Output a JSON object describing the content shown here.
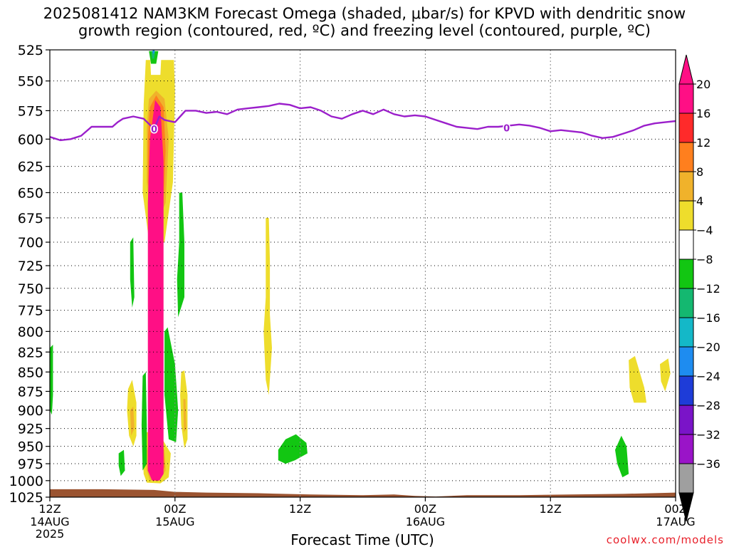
{
  "title_line1": "2025081412 NAM3KM Forecast Omega (shaded, μbar/s) for KPVD with dendritic snow",
  "title_line2": "growth region (contoured, red, ºC) and freezing level (contoured, purple, ºC)",
  "x_title": "Forecast Time (UTC)",
  "credit": "coolwx.com/models",
  "colors": {
    "freezing_line": "#9b1fcb",
    "ground": "#9b5431",
    "grid": "#555555"
  },
  "chart_data": {
    "type": "heatmap",
    "x_unit": "hours since 2025-08-14 12Z",
    "xlim": [
      0,
      60
    ],
    "ylim": [
      525,
      1025
    ],
    "y_scale": "log-pressure",
    "y_ticks": [
      525,
      550,
      575,
      600,
      625,
      650,
      675,
      700,
      725,
      750,
      775,
      800,
      825,
      850,
      875,
      900,
      925,
      950,
      975,
      1000,
      1025
    ],
    "x_ticks": [
      {
        "x": 0,
        "time": "12Z",
        "date": "14AUG",
        "year": "2025"
      },
      {
        "x": 12,
        "time": "00Z",
        "date": "15AUG",
        "year": ""
      },
      {
        "x": 24,
        "time": "12Z",
        "date": "",
        "year": ""
      },
      {
        "x": 36,
        "time": "00Z",
        "date": "16AUG",
        "year": ""
      },
      {
        "x": 48,
        "time": "12Z",
        "date": "",
        "year": ""
      },
      {
        "x": 60,
        "time": "00Z",
        "date": "17AUG",
        "year": ""
      }
    ],
    "colorbar": {
      "labels": [
        "20",
        "16",
        "12",
        "8",
        "4",
        "−4",
        "−8",
        "−12",
        "−16",
        "−20",
        "−24",
        "−28",
        "−32",
        "−36"
      ],
      "bins": [
        "#ff0f85",
        "#ff2a2a",
        "#ff7f1e",
        "#f0b22b",
        "#eedd2c",
        "#ffffff",
        "#12c612",
        "#14b870",
        "#14b8c8",
        "#1e8cf0",
        "#1e3cd8",
        "#7a14c8",
        "#9a14c8",
        "#9f9f9f"
      ]
    },
    "omega_regions": [
      {
        "color": "#eedd2c",
        "points": [
          [
            9.2,
            533
          ],
          [
            11.9,
            533
          ],
          [
            12,
            560
          ],
          [
            11.8,
            640
          ],
          [
            11.0,
            700
          ],
          [
            9.6,
            706
          ],
          [
            8.9,
            650
          ],
          [
            9.0,
            570
          ]
        ]
      },
      {
        "color": "#eedd2c",
        "points": [
          [
            8.9,
            960
          ],
          [
            9.1,
            930
          ],
          [
            9.6,
            930
          ],
          [
            10.8,
            940
          ],
          [
            11.6,
            960
          ],
          [
            11.4,
            995
          ],
          [
            10.6,
            1004
          ],
          [
            9.3,
            1003
          ],
          [
            9.0,
            990
          ]
        ]
      },
      {
        "color": "#eedd2c",
        "points": [
          [
            9.0,
            600
          ],
          [
            9.1,
            570
          ],
          [
            9.8,
            560
          ],
          [
            10.8,
            562
          ],
          [
            11.6,
            585
          ],
          [
            11.7,
            640
          ],
          [
            11.0,
            690
          ],
          [
            9.6,
            693
          ],
          [
            9.1,
            660
          ]
        ]
      },
      {
        "color": "#f0b22b",
        "points": [
          [
            9.3,
            590
          ],
          [
            9.5,
            565
          ],
          [
            10.2,
            558
          ],
          [
            11.0,
            565
          ],
          [
            11.4,
            600
          ],
          [
            11.1,
            660
          ],
          [
            10.4,
            678
          ],
          [
            9.6,
            675
          ],
          [
            9.3,
            640
          ]
        ]
      },
      {
        "color": "#f0b22b",
        "points": [
          [
            9.2,
            960
          ],
          [
            9.5,
            945
          ],
          [
            10.2,
            945
          ],
          [
            11.0,
            955
          ],
          [
            11.1,
            985
          ],
          [
            10.5,
            1000
          ],
          [
            9.6,
            999
          ],
          [
            9.3,
            985
          ]
        ]
      },
      {
        "color": "#ff7f1e",
        "points": [
          [
            9.4,
            600
          ],
          [
            9.6,
            572
          ],
          [
            10.2,
            562
          ],
          [
            10.9,
            572
          ],
          [
            11.1,
            610
          ],
          [
            10.9,
            660
          ],
          [
            10.3,
            668
          ],
          [
            9.7,
            665
          ],
          [
            9.4,
            640
          ]
        ]
      },
      {
        "color": "#ff7f1e",
        "points": [
          [
            9.4,
            965
          ],
          [
            9.6,
            950
          ],
          [
            10.9,
            952
          ],
          [
            11.0,
            980
          ],
          [
            10.5,
            996
          ],
          [
            9.7,
            995
          ],
          [
            9.4,
            985
          ]
        ]
      },
      {
        "color": "#ff0f85",
        "points": [
          [
            9.4,
            660
          ],
          [
            9.6,
            600
          ],
          [
            10.1,
            566
          ],
          [
            10.6,
            572
          ],
          [
            10.9,
            620
          ],
          [
            10.9,
            800
          ],
          [
            10.9,
            990
          ],
          [
            10.5,
            1000
          ],
          [
            9.8,
            1000
          ],
          [
            9.4,
            985
          ],
          [
            9.4,
            800
          ]
        ]
      },
      {
        "color": "#ffffff",
        "points": [
          [
            9.6,
            528
          ],
          [
            10.7,
            528
          ],
          [
            10.6,
            545
          ],
          [
            9.7,
            545
          ]
        ]
      },
      {
        "color": "#12c612",
        "points": [
          [
            9.5,
            526
          ],
          [
            10.4,
            526
          ],
          [
            10.2,
            536
          ],
          [
            9.7,
            536
          ]
        ]
      },
      {
        "color": "#14b870",
        "points": [
          [
            9.75,
            526
          ],
          [
            10.1,
            526
          ],
          [
            10.0,
            532
          ],
          [
            9.8,
            532
          ]
        ]
      },
      {
        "color": "#1e8cf0",
        "points": [
          [
            9.85,
            525
          ],
          [
            10.05,
            525
          ],
          [
            10.0,
            528
          ],
          [
            9.9,
            528
          ]
        ]
      },
      {
        "color": "#12c612",
        "points": [
          [
            7.7,
            700
          ],
          [
            8.0,
            695
          ],
          [
            8.1,
            760
          ],
          [
            7.9,
            772
          ],
          [
            7.7,
            740
          ]
        ]
      },
      {
        "color": "#12c612",
        "points": [
          [
            12.4,
            650
          ],
          [
            12.7,
            650
          ],
          [
            12.9,
            700
          ],
          [
            12.9,
            760
          ],
          [
            12.3,
            783
          ],
          [
            12.2,
            740
          ],
          [
            12.4,
            700
          ]
        ]
      },
      {
        "color": "#12c612",
        "points": [
          [
            11.0,
            800
          ],
          [
            11.3,
            795
          ],
          [
            12.0,
            840
          ],
          [
            12.3,
            900
          ],
          [
            12.1,
            944
          ],
          [
            11.4,
            940
          ],
          [
            11.0,
            880
          ]
        ]
      },
      {
        "color": "#12c612",
        "points": [
          [
            8.9,
            855
          ],
          [
            9.2,
            850
          ],
          [
            9.3,
            920
          ],
          [
            9.3,
            975
          ],
          [
            8.9,
            985
          ],
          [
            8.8,
            920
          ]
        ]
      },
      {
        "color": "#12c612",
        "points": [
          [
            6.6,
            960
          ],
          [
            7.1,
            955
          ],
          [
            7.2,
            985
          ],
          [
            6.8,
            993
          ],
          [
            6.6,
            978
          ]
        ]
      },
      {
        "color": "#12c612",
        "points": [
          [
            0,
            820
          ],
          [
            0.3,
            816
          ],
          [
            0.3,
            880
          ],
          [
            0.2,
            906
          ],
          [
            0,
            900
          ]
        ]
      },
      {
        "color": "#12c612",
        "points": [
          [
            21.9,
            955
          ],
          [
            22.6,
            940
          ],
          [
            23.6,
            933
          ],
          [
            24.6,
            945
          ],
          [
            24.7,
            960
          ],
          [
            23.5,
            970
          ],
          [
            22.6,
            975
          ],
          [
            21.9,
            970
          ]
        ]
      },
      {
        "color": "#12c612",
        "points": [
          [
            54.2,
            955
          ],
          [
            54.8,
            935
          ],
          [
            55.3,
            950
          ],
          [
            55.5,
            990
          ],
          [
            54.9,
            995
          ],
          [
            54.4,
            975
          ]
        ]
      },
      {
        "color": "#eedd2c",
        "points": [
          [
            7.5,
            872
          ],
          [
            7.9,
            860
          ],
          [
            8.3,
            890
          ],
          [
            8.3,
            935
          ],
          [
            8.0,
            950
          ],
          [
            7.6,
            935
          ],
          [
            7.4,
            900
          ]
        ]
      },
      {
        "color": "#f0b22b",
        "points": [
          [
            7.7,
            900
          ],
          [
            8.0,
            895
          ],
          [
            8.1,
            925
          ],
          [
            7.8,
            935
          ]
        ]
      },
      {
        "color": "#eedd2c",
        "points": [
          [
            12.6,
            850
          ],
          [
            12.9,
            848
          ],
          [
            13.2,
            880
          ],
          [
            13.2,
            940
          ],
          [
            12.9,
            953
          ],
          [
            12.6,
            920
          ],
          [
            12.5,
            880
          ]
        ]
      },
      {
        "color": "#f0b22b",
        "points": [
          [
            12.8,
            885
          ],
          [
            13.0,
            885
          ],
          [
            13.1,
            925
          ],
          [
            12.85,
            930
          ]
        ]
      },
      {
        "color": "#eedd2c",
        "points": [
          [
            20.7,
            675
          ],
          [
            21.0,
            675
          ],
          [
            21.1,
            720
          ],
          [
            21.1,
            780
          ],
          [
            21.3,
            820
          ],
          [
            21.0,
            880
          ],
          [
            20.7,
            860
          ],
          [
            20.5,
            800
          ],
          [
            20.7,
            760
          ]
        ]
      },
      {
        "color": "#eedd2c",
        "points": [
          [
            55.5,
            835
          ],
          [
            56.1,
            830
          ],
          [
            57.0,
            870
          ],
          [
            57.2,
            890
          ],
          [
            56.0,
            890
          ],
          [
            55.6,
            870
          ]
        ]
      },
      {
        "color": "#eedd2c",
        "points": [
          [
            58.5,
            840
          ],
          [
            59.3,
            833
          ],
          [
            59.5,
            852
          ],
          [
            59.0,
            875
          ],
          [
            58.6,
            862
          ]
        ]
      }
    ],
    "freezing_level": [
      [
        0,
        598
      ],
      [
        1,
        601
      ],
      [
        2,
        600
      ],
      [
        3,
        597
      ],
      [
        4,
        589
      ],
      [
        5,
        589
      ],
      [
        6,
        589
      ],
      [
        6.5,
        585
      ],
      [
        7,
        582
      ],
      [
        8,
        580
      ],
      [
        9,
        582
      ],
      [
        10,
        591
      ],
      [
        10.5,
        580
      ],
      [
        11,
        583
      ],
      [
        12,
        585
      ],
      [
        13,
        575
      ],
      [
        14,
        575
      ],
      [
        15,
        577
      ],
      [
        16,
        576
      ],
      [
        17,
        578
      ],
      [
        18,
        574
      ],
      [
        19,
        573
      ],
      [
        20,
        572
      ],
      [
        21,
        571
      ],
      [
        22,
        569
      ],
      [
        23,
        570
      ],
      [
        24,
        573
      ],
      [
        25,
        572
      ],
      [
        26,
        575
      ],
      [
        27,
        580
      ],
      [
        28,
        582
      ],
      [
        29,
        578
      ],
      [
        30,
        575
      ],
      [
        31,
        578
      ],
      [
        32,
        574
      ],
      [
        33,
        578
      ],
      [
        34,
        580
      ],
      [
        35,
        579
      ],
      [
        36,
        580
      ],
      [
        37,
        583
      ],
      [
        38,
        586
      ],
      [
        39,
        589
      ],
      [
        40,
        590
      ],
      [
        41,
        591
      ],
      [
        42,
        589
      ],
      [
        43,
        589
      ],
      [
        44,
        588
      ],
      [
        45,
        587
      ],
      [
        46,
        588
      ],
      [
        47,
        590
      ],
      [
        48,
        593
      ],
      [
        49,
        592
      ],
      [
        50,
        593
      ],
      [
        51,
        594
      ],
      [
        52,
        597
      ],
      [
        53,
        599
      ],
      [
        54,
        598
      ],
      [
        55,
        595
      ],
      [
        56,
        592
      ],
      [
        57,
        588
      ],
      [
        58,
        586
      ],
      [
        59,
        585
      ],
      [
        60,
        584
      ]
    ],
    "freezing_labels": [
      {
        "x": 10.0,
        "p": 591,
        "text": "0"
      },
      {
        "x": 43.8,
        "p": 590,
        "text": "0"
      }
    ],
    "ground": [
      [
        0,
        1013
      ],
      [
        5,
        1013
      ],
      [
        10,
        1014
      ],
      [
        12,
        1017
      ],
      [
        15,
        1018
      ],
      [
        20,
        1019
      ],
      [
        25,
        1021
      ],
      [
        30,
        1022
      ],
      [
        33,
        1021
      ],
      [
        35,
        1023
      ],
      [
        37,
        1024
      ],
      [
        40,
        1022
      ],
      [
        45,
        1022
      ],
      [
        50,
        1021
      ],
      [
        55,
        1020
      ],
      [
        60,
        1018
      ]
    ]
  }
}
